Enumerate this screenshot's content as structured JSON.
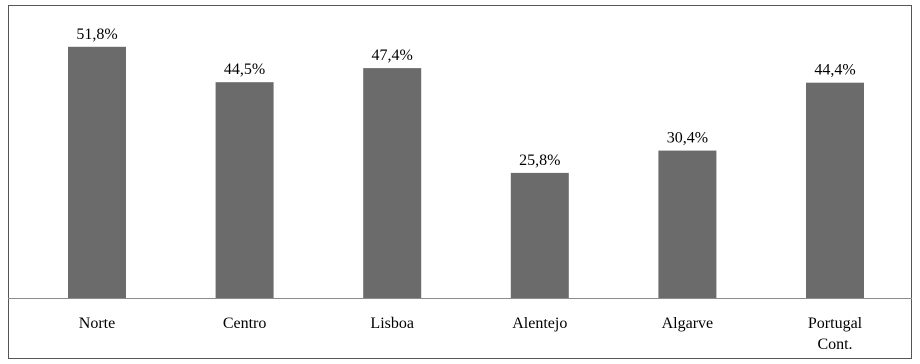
{
  "chart_data": {
    "type": "bar",
    "categories": [
      "Norte",
      "Centro",
      "Lisboa",
      "Alentejo",
      "Algarve",
      "Portugal Cont."
    ],
    "category_lines": [
      [
        "Norte"
      ],
      [
        "Centro"
      ],
      [
        "Lisboa"
      ],
      [
        "Alentejo"
      ],
      [
        "Algarve"
      ],
      [
        "Portugal",
        "Cont."
      ]
    ],
    "values": [
      51.8,
      44.5,
      47.4,
      25.8,
      30.4,
      44.4
    ],
    "value_labels": [
      "51,8%",
      "44,5%",
      "47,4%",
      "25,8%",
      "30,4%",
      "44,4%"
    ],
    "unit": "%",
    "ylim": [
      0,
      60
    ],
    "grid": false,
    "legend": "none",
    "bar_color": "#6b6b6b",
    "title": "",
    "xlabel": "",
    "ylabel": ""
  }
}
